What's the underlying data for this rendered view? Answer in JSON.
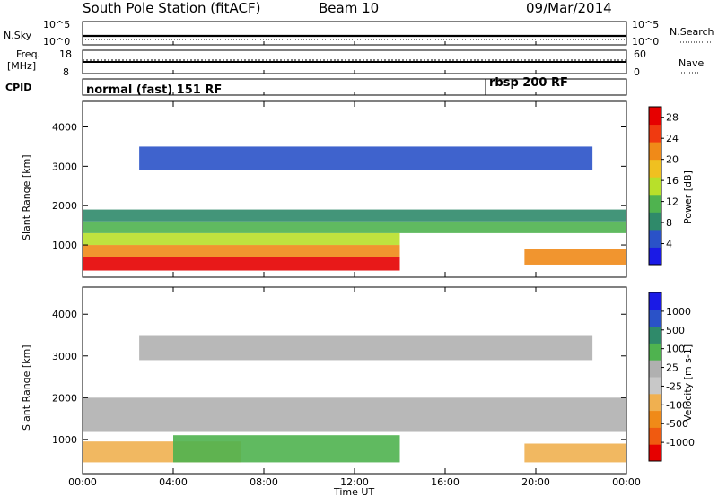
{
  "header": {
    "station": "South Pole Station (fitACF)",
    "beam": "Beam 10",
    "date": "09/Mar/2014"
  },
  "noise_panel": {
    "left_label": "N.Sky",
    "right_label": "N.Search",
    "left_ticks": [
      "10^5",
      "10^0"
    ],
    "right_ticks": [
      "10^5",
      "10^0"
    ]
  },
  "freq_panel": {
    "left_label_line1": "Freq.",
    "left_label_line2": "[MHz]",
    "right_label": "Nave",
    "left_ticks": [
      "18",
      "8"
    ],
    "right_ticks": [
      "60",
      "0"
    ]
  },
  "cpid_panel": {
    "label": "CPID",
    "modes": [
      {
        "name": "normal (fast) 151 RF",
        "start_hour": 0.0
      },
      {
        "name": "rbsp 200 RF",
        "start_hour": 18.0
      }
    ]
  },
  "colors": {
    "power": [
      "#1a1ae6",
      "#2a52c8",
      "#2f8a6a",
      "#4fb34f",
      "#b8e02a",
      "#f0c020",
      "#f08a18",
      "#f03a10",
      "#e60000"
    ],
    "velocity": [
      "#e60000",
      "#f05a10",
      "#f08a18",
      "#f0b050",
      "#c8c8c8",
      "#b0b0b0",
      "#4fb34f",
      "#2f8a6a",
      "#2a52c8",
      "#1a1ae6"
    ]
  },
  "chart_data": [
    {
      "type": "heatmap",
      "title": "",
      "xlabel": "Time UT",
      "ylabel": "Slant Range [km]",
      "x_ticks": [
        "00:00",
        "04:00",
        "08:00",
        "12:00",
        "16:00",
        "20:00",
        "00:00"
      ],
      "y_ticks": [
        "1000",
        "2000",
        "3000",
        "4000"
      ],
      "xlim": [
        0,
        24
      ],
      "ylim": [
        180,
        4650
      ],
      "colorbar": {
        "label": "Power [dB]",
        "ticks": [
          "4",
          "8",
          "12",
          "16",
          "20",
          "24",
          "28"
        ],
        "range": [
          0,
          30
        ]
      },
      "bands": [
        {
          "t0": 0.0,
          "t1": 14.0,
          "r0": 350,
          "r1": 700,
          "level": 28
        },
        {
          "t0": 0.0,
          "t1": 14.0,
          "r0": 700,
          "r1": 1000,
          "level": 20
        },
        {
          "t0": 0.0,
          "t1": 14.0,
          "r0": 1000,
          "r1": 1300,
          "level": 16
        },
        {
          "t0": 0.0,
          "t1": 24.0,
          "r0": 1300,
          "r1": 1600,
          "level": 12
        },
        {
          "t0": 0.0,
          "t1": 24.0,
          "r0": 1600,
          "r1": 1900,
          "level": 8
        },
        {
          "t0": 2.5,
          "t1": 22.5,
          "r0": 2900,
          "r1": 3500,
          "level": 4
        },
        {
          "t0": 19.5,
          "t1": 24.0,
          "r0": 500,
          "r1": 900,
          "level": 20
        }
      ]
    },
    {
      "type": "heatmap",
      "title": "",
      "xlabel": "Time UT",
      "ylabel": "Slant Range [km]",
      "x_ticks": [
        "00:00",
        "04:00",
        "08:00",
        "12:00",
        "16:00",
        "20:00",
        "00:00"
      ],
      "y_ticks": [
        "1000",
        "2000",
        "3000",
        "4000"
      ],
      "xlim": [
        0,
        24
      ],
      "ylim": [
        180,
        4650
      ],
      "colorbar": {
        "label": "Velocity [m s-1]",
        "ticks": [
          "1000",
          "500",
          "100",
          "25",
          "-25",
          "-100",
          "-500",
          "-1000"
        ],
        "range": [
          -1000,
          1000
        ]
      },
      "bands": [
        {
          "t0": 0.0,
          "t1": 7.0,
          "r0": 450,
          "r1": 950,
          "level": -300
        },
        {
          "t0": 4.0,
          "t1": 14.0,
          "r0": 450,
          "r1": 1100,
          "level": 200
        },
        {
          "t0": 0.0,
          "t1": 24.0,
          "r0": 1200,
          "r1": 2000,
          "level": 0
        },
        {
          "t0": 2.5,
          "t1": 22.5,
          "r0": 2900,
          "r1": 3500,
          "level": 0
        },
        {
          "t0": 19.5,
          "t1": 24.0,
          "r0": 450,
          "r1": 900,
          "level": -300
        }
      ]
    }
  ]
}
